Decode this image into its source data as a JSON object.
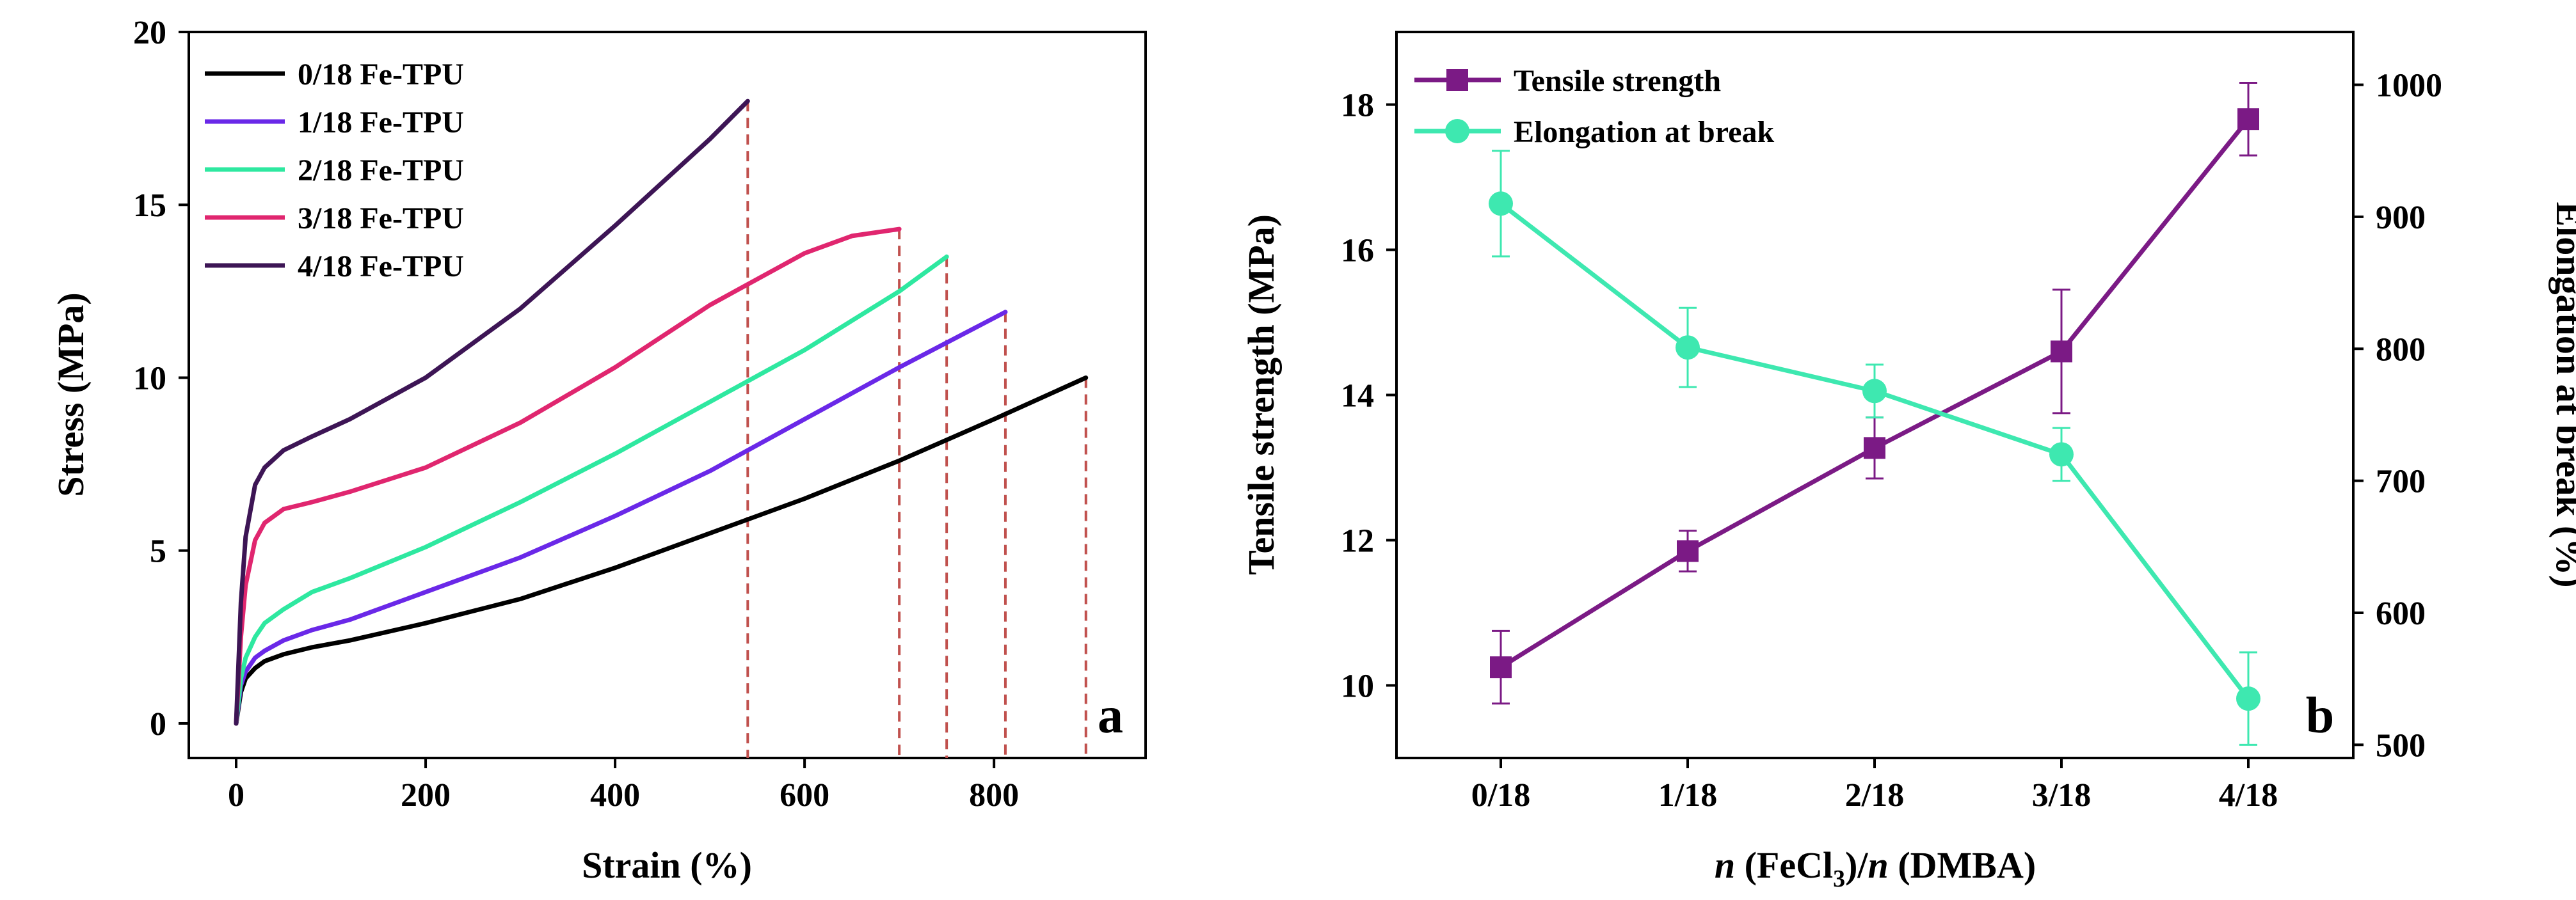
{
  "chart_data": [
    {
      "panel": "a",
      "type": "line",
      "xlabel": "Strain (%)",
      "ylabel": "Stress (MPa)",
      "xlim": [
        -50,
        960
      ],
      "ylim": [
        -1,
        20
      ],
      "xticks": [
        0,
        200,
        400,
        600,
        800
      ],
      "yticks": [
        0,
        5,
        10,
        15,
        20
      ],
      "legend_position": "top-left",
      "panel_label": "a",
      "series": [
        {
          "name": "0/18 Fe-TPU",
          "color": "#000000",
          "x": [
            0,
            5,
            10,
            20,
            30,
            50,
            80,
            120,
            200,
            300,
            400,
            500,
            600,
            700,
            800,
            897
          ],
          "y": [
            0,
            0.9,
            1.3,
            1.6,
            1.8,
            2.0,
            2.2,
            2.4,
            2.9,
            3.6,
            4.5,
            5.5,
            6.5,
            7.6,
            8.8,
            10.0
          ],
          "break_strain": 897
        },
        {
          "name": "1/18 Fe-TPU",
          "color": "#6a28e8",
          "x": [
            0,
            5,
            10,
            20,
            30,
            50,
            80,
            120,
            200,
            300,
            400,
            500,
            600,
            700,
            812
          ],
          "y": [
            0,
            1.1,
            1.5,
            1.9,
            2.1,
            2.4,
            2.7,
            3.0,
            3.8,
            4.8,
            6.0,
            7.3,
            8.8,
            10.3,
            11.9
          ],
          "break_strain": 812
        },
        {
          "name": "2/18 Fe-TPU",
          "color": "#2ee8a0",
          "x": [
            0,
            5,
            10,
            20,
            30,
            50,
            80,
            120,
            200,
            300,
            400,
            500,
            600,
            700,
            750
          ],
          "y": [
            0,
            1.3,
            1.9,
            2.5,
            2.9,
            3.3,
            3.8,
            4.2,
            5.1,
            6.4,
            7.8,
            9.3,
            10.8,
            12.5,
            13.5
          ],
          "break_strain": 750
        },
        {
          "name": "3/18 Fe-TPU",
          "color": "#e0266f",
          "x": [
            0,
            5,
            10,
            20,
            30,
            50,
            80,
            120,
            200,
            300,
            400,
            500,
            600,
            650,
            700
          ],
          "y": [
            0,
            2.5,
            4.0,
            5.3,
            5.8,
            6.2,
            6.4,
            6.7,
            7.4,
            8.7,
            10.3,
            12.1,
            13.6,
            14.1,
            14.3
          ],
          "break_strain": 700
        },
        {
          "name": "4/18 Fe-TPU",
          "color": "#3d1555",
          "x": [
            0,
            5,
            10,
            20,
            30,
            50,
            80,
            120,
            200,
            300,
            400,
            500,
            540
          ],
          "y": [
            0,
            3.5,
            5.4,
            6.9,
            7.4,
            7.9,
            8.3,
            8.8,
            10.0,
            12.0,
            14.4,
            16.9,
            18.0
          ],
          "break_strain": 540
        }
      ]
    },
    {
      "panel": "b",
      "type": "line",
      "xlabel_parts": [
        "n",
        " (FeCl",
        "3",
        ")/",
        "n",
        " (DMBA)"
      ],
      "ylabel": "Tensile strength (MPa)",
      "y2label": "Elongation at break (%)",
      "categories": [
        "0/18",
        "1/18",
        "2/18",
        "3/18",
        "4/18"
      ],
      "ylim": [
        9,
        19
      ],
      "yticks": [
        10,
        12,
        14,
        16,
        18
      ],
      "y2lim": [
        490,
        1040
      ],
      "y2ticks": [
        500,
        600,
        700,
        800,
        900,
        1000
      ],
      "legend_position": "top-left",
      "panel_label": "b",
      "series": [
        {
          "name": "Tensile strength",
          "axis": "left",
          "marker": "square",
          "color": "#7b1a85",
          "values": [
            10.25,
            11.85,
            13.27,
            14.6,
            17.8
          ],
          "errors": [
            0.5,
            0.28,
            0.42,
            0.85,
            0.5
          ]
        },
        {
          "name": "Elongation at break",
          "axis": "right",
          "marker": "circle",
          "color": "#3ee8b0",
          "values": [
            910,
            801,
            768,
            720,
            535
          ],
          "errors": [
            40,
            30,
            20,
            20,
            35
          ]
        }
      ]
    }
  ]
}
